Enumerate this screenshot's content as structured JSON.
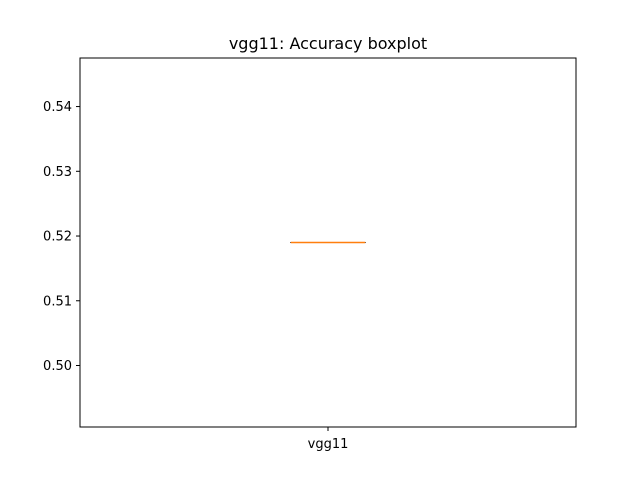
{
  "chart_data": {
    "type": "boxplot",
    "title": "vgg11: Accuracy boxplot",
    "xlabel": "",
    "ylabel": "",
    "categories": [
      "vgg11"
    ],
    "boxes": [
      {
        "label": "vgg11",
        "min": 0.519,
        "q1": 0.519,
        "median": 0.519,
        "q3": 0.519,
        "max": 0.519
      }
    ],
    "ylim": [
      0.4905,
      0.5475
    ],
    "yticks": [
      0.5,
      0.51,
      0.52,
      0.53,
      0.54
    ],
    "ytick_labels": [
      "0.50",
      "0.51",
      "0.52",
      "0.53",
      "0.54"
    ],
    "grid": false,
    "colors": {
      "box": "#000000",
      "median": "#ff7f0e"
    }
  }
}
